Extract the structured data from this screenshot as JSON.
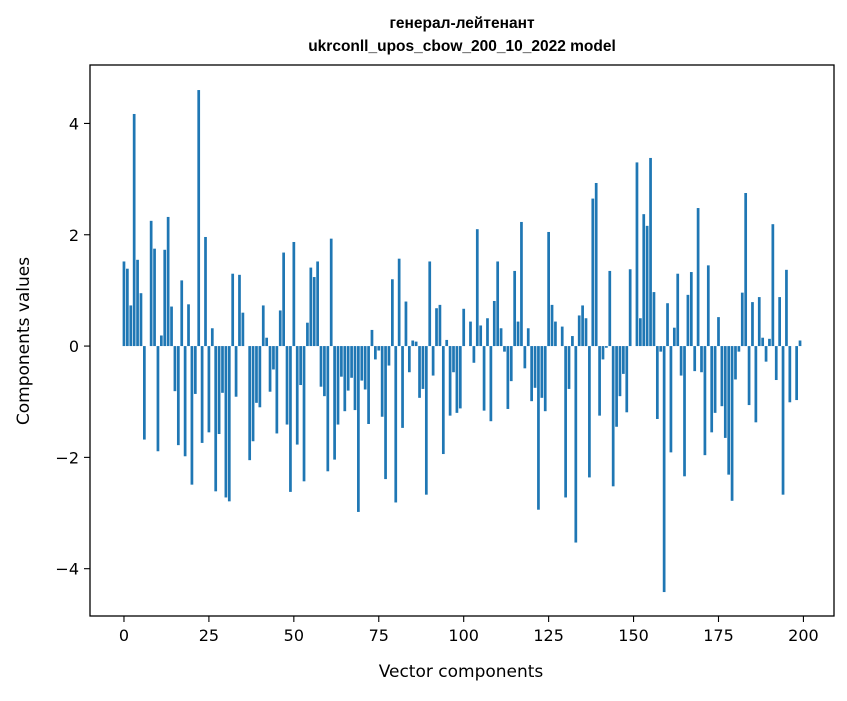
{
  "chart_data": {
    "type": "bar",
    "title": "генерал-лейтенант",
    "subtitle": "ukrconll_upos_cbow_200_10_2022 model",
    "xlabel": "Vector components",
    "ylabel": "Components values",
    "xlim": [
      -10,
      209
    ],
    "ylim": [
      -4.85,
      5.05
    ],
    "xticks": [
      0,
      25,
      50,
      75,
      100,
      125,
      150,
      175,
      200
    ],
    "xtick_labels": [
      "0",
      "25",
      "50",
      "75",
      "100",
      "125",
      "150",
      "175",
      "200"
    ],
    "yticks": [
      -4,
      -2,
      0,
      2,
      4
    ],
    "ytick_labels": [
      "−4",
      "−2",
      "0",
      "2",
      "4"
    ],
    "grid": false,
    "bar_color": "#1f77b4",
    "values": [
      1.52,
      1.39,
      0.73,
      4.17,
      1.55,
      0.95,
      -1.68,
      0.0,
      2.25,
      1.75,
      -1.89,
      0.19,
      1.73,
      2.32,
      0.71,
      -0.81,
      -1.78,
      1.18,
      -1.98,
      0.75,
      -2.49,
      -0.86,
      4.6,
      -1.74,
      1.96,
      -1.55,
      0.32,
      -2.61,
      -1.58,
      -0.84,
      -2.72,
      -2.79,
      1.3,
      -0.91,
      1.28,
      0.6,
      0.0,
      -2.05,
      -1.71,
      -1.02,
      -1.1,
      0.73,
      0.15,
      -0.82,
      -0.42,
      -1.57,
      0.64,
      1.68,
      -1.41,
      -2.62,
      1.87,
      -1.77,
      -0.7,
      -2.43,
      0.42,
      1.41,
      1.24,
      1.52,
      -0.73,
      -0.9,
      -2.25,
      1.93,
      -2.04,
      -1.41,
      -0.55,
      -1.17,
      -0.8,
      -0.57,
      -1.15,
      -2.98,
      -0.62,
      -0.78,
      -1.4,
      0.29,
      -0.24,
      -0.08,
      -1.27,
      -2.39,
      -0.35,
      1.2,
      -2.81,
      1.57,
      -1.47,
      0.8,
      -0.47,
      0.1,
      0.08,
      -0.93,
      -0.77,
      -2.67,
      1.52,
      -0.53,
      0.68,
      0.74,
      -1.94,
      0.11,
      -1.25,
      -0.47,
      -1.2,
      -1.12,
      0.67,
      0.0,
      0.44,
      -0.3,
      2.1,
      0.37,
      -1.16,
      0.5,
      -1.35,
      0.81,
      1.52,
      0.32,
      -0.1,
      -1.13,
      -0.63,
      1.35,
      0.44,
      2.23,
      -0.4,
      0.32,
      -0.99,
      -0.75,
      -2.94,
      -0.93,
      -1.17,
      2.05,
      0.74,
      0.44,
      0.0,
      0.35,
      -2.72,
      -0.77,
      0.18,
      -3.53,
      0.55,
      0.73,
      0.5,
      -2.36,
      2.65,
      2.93,
      -1.25,
      -0.24,
      -0.03,
      1.35,
      -2.52,
      -1.45,
      -0.9,
      -0.5,
      -1.19,
      1.38,
      0.0,
      3.3,
      0.5,
      2.37,
      2.16,
      3.38,
      0.97,
      -1.31,
      -0.1,
      -4.42,
      0.77,
      -1.91,
      0.33,
      1.3,
      -0.53,
      -2.34,
      0.92,
      1.33,
      -0.45,
      2.48,
      -0.47,
      -1.96,
      1.45,
      -1.55,
      -1.2,
      0.52,
      -1.08,
      -1.65,
      -2.31,
      -2.78,
      -0.6,
      -0.1,
      0.96,
      2.75,
      -1.06,
      0.79,
      -1.37,
      0.88,
      0.15,
      -0.28,
      0.13,
      2.19,
      -0.61,
      0.88,
      -2.67,
      1.37,
      -1.01,
      0.0,
      -0.97,
      0.1
    ]
  }
}
